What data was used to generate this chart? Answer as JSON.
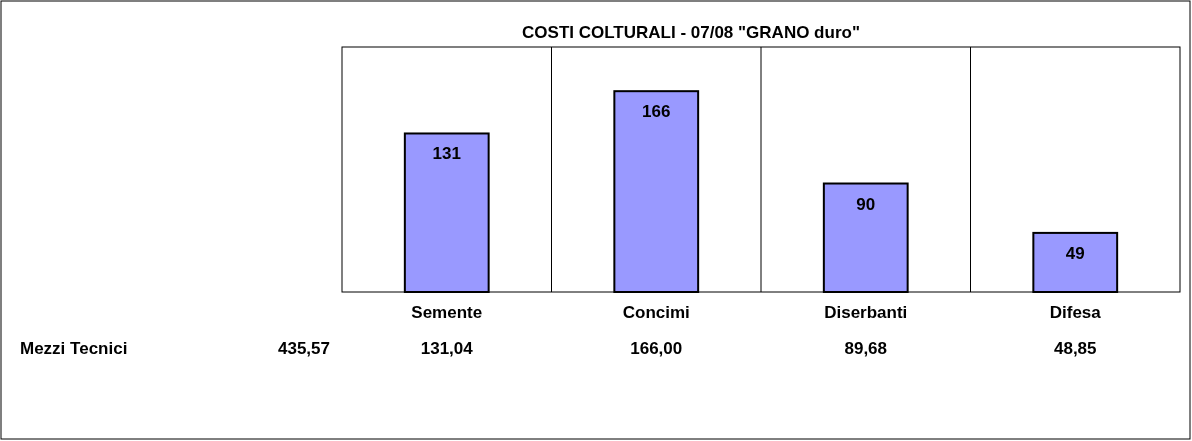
{
  "chart_data": {
    "type": "bar",
    "title": "COSTI COLTURALI - 07/08 \"GRANO duro\"",
    "categories": [
      "Semente",
      "Concimi",
      "Diserbanti",
      "Difesa"
    ],
    "values": [
      131.04,
      166,
      89.68,
      48.85
    ],
    "value_labels": [
      "131",
      "166",
      "90",
      "49"
    ],
    "color": "#9999ff",
    "grid": "x",
    "annotations": [
      "Mezzi Tecnici",
      "435,57",
      "131,04",
      "166,00",
      "89,68",
      "48,85"
    ]
  }
}
